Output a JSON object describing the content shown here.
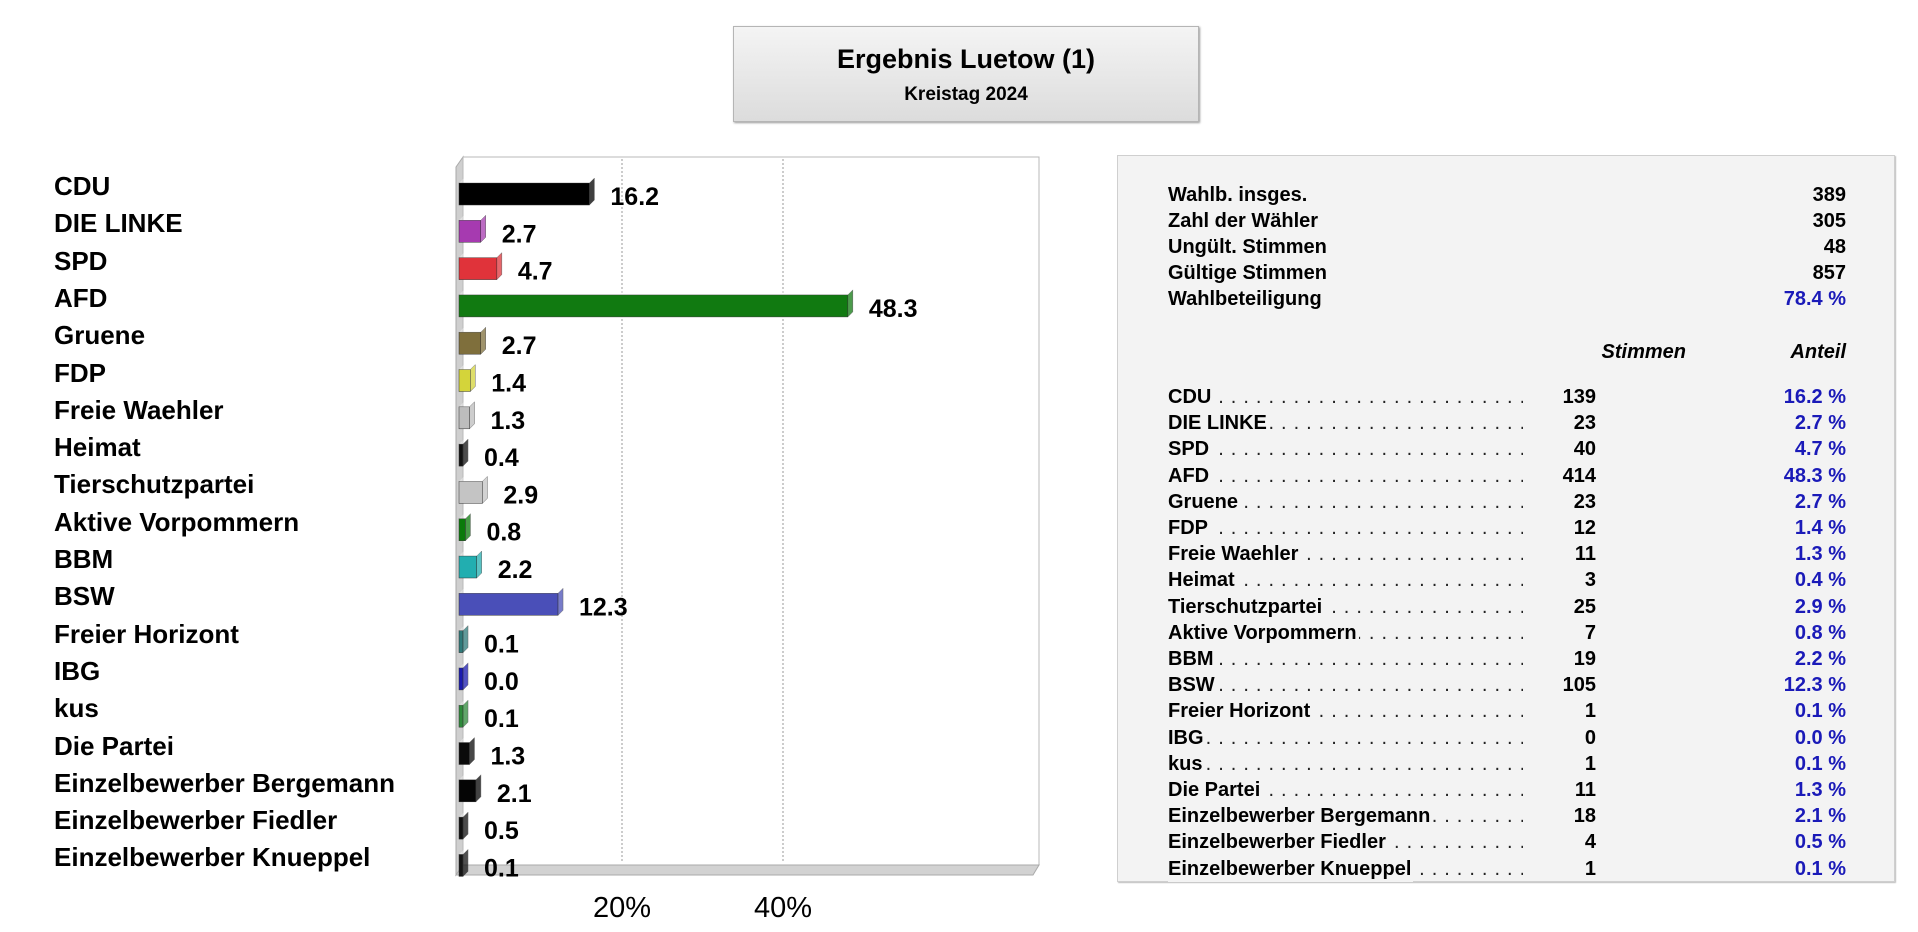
{
  "header": {
    "title": "Ergebnis Luetow (1)",
    "subtitle": "Kreistag 2024"
  },
  "summary": {
    "rows": [
      {
        "label": "Wahlb. insges.",
        "value": "389"
      },
      {
        "label": "Zahl der Wähler",
        "value": "305"
      },
      {
        "label": "Ungült. Stimmen",
        "value": "48"
      },
      {
        "label": "Gültige Stimmen",
        "value": "857"
      },
      {
        "label": "Wahlbeteiligung",
        "value": "78.4 %"
      }
    ]
  },
  "table": {
    "col_votes": "Stimmen",
    "col_share": "Anteil",
    "rows": [
      {
        "party": "CDU",
        "votes": "139",
        "share": "16.2 %"
      },
      {
        "party": "DIE LINKE",
        "votes": "23",
        "share": "2.7 %"
      },
      {
        "party": "SPD",
        "votes": "40",
        "share": "4.7 %"
      },
      {
        "party": "AFD",
        "votes": "414",
        "share": "48.3 %"
      },
      {
        "party": "Gruene",
        "votes": "23",
        "share": "2.7 %"
      },
      {
        "party": "FDP",
        "votes": "12",
        "share": "1.4 %"
      },
      {
        "party": "Freie Waehler",
        "votes": "11",
        "share": "1.3 %"
      },
      {
        "party": "Heimat",
        "votes": "3",
        "share": "0.4 %"
      },
      {
        "party": "Tierschutzpartei",
        "votes": "25",
        "share": "2.9 %"
      },
      {
        "party": "Aktive Vorpommern",
        "votes": "7",
        "share": "0.8 %"
      },
      {
        "party": "BBM",
        "votes": "19",
        "share": "2.2 %"
      },
      {
        "party": "BSW",
        "votes": "105",
        "share": "12.3 %"
      },
      {
        "party": "Freier Horizont",
        "votes": "1",
        "share": "0.1 %"
      },
      {
        "party": "IBG",
        "votes": "0",
        "share": "0.0 %"
      },
      {
        "party": "kus",
        "votes": "1",
        "share": "0.1 %"
      },
      {
        "party": "Die Partei",
        "votes": "11",
        "share": "1.3 %"
      },
      {
        "party": "Einzelbewerber Bergemann",
        "votes": "18",
        "share": "2.1 %"
      },
      {
        "party": "Einzelbewerber Fiedler",
        "votes": "4",
        "share": "0.5 %"
      },
      {
        "party": "Einzelbewerber Knueppel",
        "votes": "1",
        "share": "0.1 %"
      }
    ]
  },
  "chart_data": {
    "type": "bar",
    "orientation": "horizontal",
    "title": "",
    "xlim": [
      0,
      70
    ],
    "xticks": [
      20,
      40
    ],
    "xtick_labels": [
      "20%",
      "40%"
    ],
    "grid": true,
    "categories": [
      "CDU",
      "DIE LINKE",
      "SPD",
      "AFD",
      "Gruene",
      "FDP",
      "Freie Waehler",
      "Heimat",
      "Tierschutzpartei",
      "Aktive Vorpommern",
      "BBM",
      "BSW",
      "Freier Horizont",
      "IBG",
      "kus",
      "Die Partei",
      "Einzelbewerber Bergemann",
      "Einzelbewerber Fiedler",
      "Einzelbewerber Knueppel"
    ],
    "values": [
      16.2,
      2.7,
      4.7,
      48.3,
      2.7,
      1.4,
      1.3,
      0.4,
      2.9,
      0.8,
      2.2,
      12.3,
      0.1,
      0.0,
      0.1,
      1.3,
      2.1,
      0.5,
      0.1
    ],
    "value_labels": [
      "16.2",
      "2.7",
      "4.7",
      "48.3",
      "2.7",
      "1.4",
      "1.3",
      "0.4",
      "2.9",
      "0.8",
      "2.2",
      "12.3",
      "0.1",
      "0.0",
      "0.1",
      "1.3",
      "2.1",
      "0.5",
      "0.1"
    ],
    "colors": [
      "#000000",
      "#a63ab0",
      "#e0333a",
      "#117a11",
      "#7f6f3c",
      "#d4d43a",
      "#bdbdbd",
      "#111111",
      "#c4c4c4",
      "#0a7a0a",
      "#22aeb0",
      "#4a4fb8",
      "#2e7a7a",
      "#1a1ab0",
      "#2e8a3a",
      "#0a0a0a",
      "#050505",
      "#101010",
      "#151515"
    ]
  }
}
